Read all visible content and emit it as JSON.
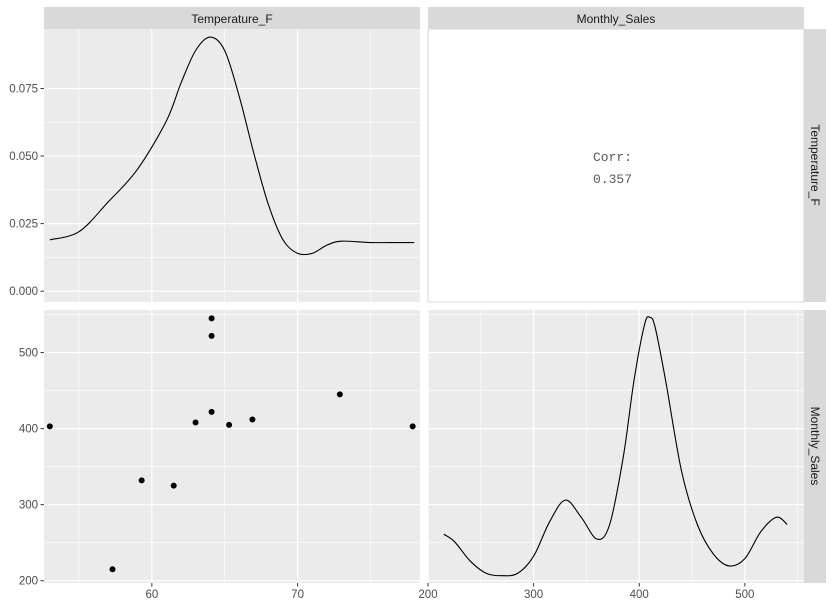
{
  "chart_data": {
    "type": "pairs",
    "variables": [
      "Temperature_F",
      "Monthly_Sales"
    ],
    "grid": true,
    "panels": {
      "temperature_density": {
        "type": "line",
        "variable": "Temperature_F",
        "x": [
          53,
          55,
          57,
          59,
          61,
          62,
          63,
          64,
          65,
          66,
          67,
          68,
          69,
          70,
          71,
          72,
          73,
          75,
          77,
          78
        ],
        "y": [
          0.019,
          0.022,
          0.033,
          0.045,
          0.063,
          0.077,
          0.089,
          0.094,
          0.089,
          0.072,
          0.051,
          0.032,
          0.019,
          0.014,
          0.014,
          0.017,
          0.0185,
          0.018,
          0.018,
          0.018
        ],
        "xlim": [
          52.6,
          78.4
        ],
        "ylim": [
          -0.004,
          0.097
        ],
        "yticks": [
          0.0,
          0.025,
          0.05,
          0.075
        ],
        "ytick_labels": [
          "0.000",
          "0.025",
          "0.050",
          "0.075"
        ]
      },
      "correlation": {
        "label": "Corr:",
        "value": "0.357"
      },
      "scatter": {
        "type": "scatter",
        "x": [
          53,
          57.3,
          59.3,
          61.5,
          63,
          64.1,
          64.1,
          64.1,
          65.3,
          66.9,
          72.9,
          77.9
        ],
        "y": [
          403,
          215,
          332,
          325,
          408,
          545,
          522,
          422,
          405,
          412,
          445,
          403
        ],
        "xlim": [
          52.6,
          78.4
        ],
        "ylim": [
          197,
          556
        ],
        "xticks": [
          60,
          70
        ],
        "xtick_labels": [
          "60",
          "70"
        ],
        "yticks": [
          200,
          300,
          400,
          500
        ],
        "ytick_labels": [
          "200",
          "300",
          "400",
          "500"
        ]
      },
      "sales_density": {
        "type": "line",
        "variable": "Monthly_Sales",
        "x": [
          215,
          225,
          240,
          255,
          270,
          285,
          300,
          315,
          330,
          345,
          360,
          372,
          385,
          395,
          405,
          410,
          415,
          425,
          440,
          455,
          470,
          485,
          500,
          515,
          530,
          540
        ],
        "y": [
          0.2,
          0.17,
          0.09,
          0.04,
          0.03,
          0.04,
          0.11,
          0.25,
          0.34,
          0.27,
          0.18,
          0.24,
          0.52,
          0.83,
          1.06,
          1.09,
          1.05,
          0.83,
          0.46,
          0.24,
          0.12,
          0.07,
          0.1,
          0.21,
          0.27,
          0.24
        ],
        "xlim": [
          200,
          556
        ],
        "ylim": [
          0,
          1.12
        ],
        "xticks": [
          200,
          300,
          400,
          500
        ],
        "xtick_labels": [
          "200",
          "300",
          "400",
          "500"
        ]
      }
    }
  },
  "colors": {
    "panel_bg": "#ebebeb",
    "grid_major": "#ffffff",
    "strip_bg": "#d9d9d9",
    "text": "#1a1a1a",
    "ticks": "#4d4d4d",
    "line": "#000000",
    "corr_text": "#595959"
  }
}
